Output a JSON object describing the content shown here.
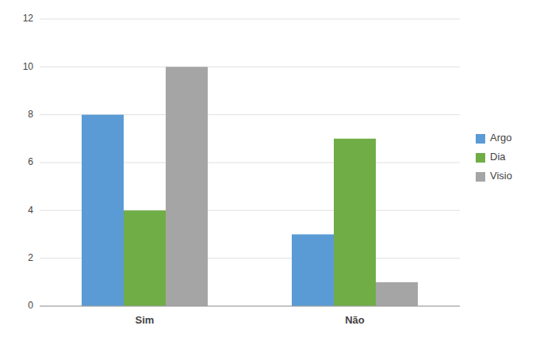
{
  "chart_data": {
    "type": "bar",
    "categories": [
      "Sim",
      "Não"
    ],
    "series": [
      {
        "name": "Argo",
        "color": "#5B9BD5",
        "values": [
          8,
          3
        ]
      },
      {
        "name": "Dia",
        "color": "#70AD47",
        "values": [
          4,
          7
        ]
      },
      {
        "name": "Visio",
        "color": "#A5A5A5",
        "values": [
          10,
          1
        ]
      }
    ],
    "ylim": [
      0,
      12
    ],
    "yticks": [
      0,
      2,
      4,
      6,
      8,
      10,
      12
    ],
    "grid": true,
    "legend": "right"
  }
}
